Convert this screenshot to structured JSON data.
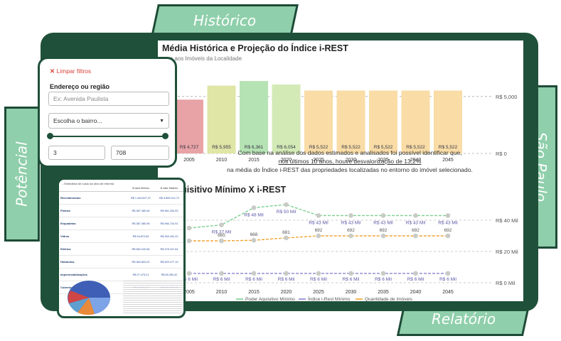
{
  "tabs": {
    "top": "Histórico",
    "right": "São Paulo",
    "left": "Potêncial",
    "bottom": "Relatório"
  },
  "chart1": {
    "title": "Média Histórica e Projeção do Índice i-REST",
    "subtitle": "...vo aos Imóveis da Localidade",
    "paragraph_line1": "Com base na análise dos dados estimados e analisados foi possível identificar que,",
    "paragraph_line2": "nos últimos 10 anos, houve desvalorização de 13,2%",
    "paragraph_line3": "na média do Índice i-REST das propriedades localizadas no entorno do imóvel selecionado.",
    "ref_labels": [
      "R$ 5,000",
      "R$ 0"
    ]
  },
  "chart2": {
    "title": "...Aquisitivo Mínimo X i-REST",
    "legend": [
      "Poder Aquisitivo Mínimo",
      "Índice i-Rest Mínimo",
      "Quantidade de Imóveis"
    ],
    "ref_labels": [
      "R$ 40 Mil",
      "R$ 20 Mil",
      "R$ 0 Mil"
    ]
  },
  "filters": {
    "clear": "Limpar filtros",
    "address_label": "Endereço ou região",
    "address_placeholder": "Ex: Avenida Paulista",
    "neighborhood": "Escolha o bairro...",
    "min": "3",
    "max": "708"
  },
  "table": {
    "title": "...Estimativa de custo da obra de reforma",
    "col1": "$ valor Mínimo",
    "col2": "$ valor Máximo",
    "rows": [
      {
        "name": "Revestimentos",
        "min": "R$ 1.443.607,37",
        "max": "R$ 3.899.912,72"
      },
      {
        "name": "Pintura",
        "min": "R$ 387.480,96",
        "max": "R$ 961.254,93"
      },
      {
        "name": "Esquadrias",
        "min": "R$ 387.480,96",
        "max": "R$ 966.724,91"
      },
      {
        "name": "Vidros",
        "min": "R$ 94.872,69",
        "max": "R$ 263.181,22"
      },
      {
        "name": "Elétrica",
        "min": "R$ 684.242,66",
        "max": "R$ 478.107,64"
      },
      {
        "name": "Hidráulica",
        "min": "R$ 369.803,02",
        "max": "R$ 629.477,19"
      },
      {
        "name": "Impermeabilizações",
        "min": "R$ 27.479,21",
        "max": "R$ 55.350,32"
      },
      {
        "name": "Cobertura",
        "min": "R$ 59.355,22",
        "max": "R$ 115.799,45"
      }
    ]
  },
  "chart_data": [
    {
      "type": "bar",
      "title": "Média Histórica e Projeção do Índice i-REST",
      "categories": [
        "2005",
        "2010",
        "2015",
        "2020",
        "2025",
        "2030",
        "2035",
        "2040",
        "2045"
      ],
      "values": [
        4727,
        5955,
        6361,
        6054,
        5522,
        5522,
        5522,
        5522,
        5522
      ],
      "value_labels": [
        "R$ 4,727",
        "R$ 5,955",
        "R$ 6,361",
        "R$ 6,054",
        "R$ 5,522",
        "R$ 5,522",
        "R$ 5,522",
        "R$ 5,522",
        "R$ 5,522"
      ],
      "colors": [
        "#e8a3a6",
        "#dfe6a6",
        "#b6e3b4",
        "#d3eab6",
        "#f9dca6",
        "#f9dca6",
        "#f9dca6",
        "#f9dca6",
        "#f9dca6"
      ]
    },
    {
      "type": "line",
      "x": [
        "2005",
        "2010",
        "2015",
        "2020",
        "2025",
        "2030",
        "2035",
        "2040",
        "2045"
      ],
      "series": [
        {
          "name": "Poder Aquisitivo Mínimo",
          "values": [
            35,
            37,
            48,
            50,
            43,
            43,
            43,
            43,
            43
          ],
          "labels": [
            "",
            "R$ 37 Mil",
            "R$ 48 Mil",
            "R$ 50 Mil",
            "R$ 43 Mil",
            "R$ 43 Mil",
            "R$ 43 Mil",
            "R$ 43 Mil",
            "R$ 43 Mil"
          ],
          "color": "#7ccf8f"
        },
        {
          "name": "Índice i-Rest Mínimo",
          "values": [
            6,
            6,
            6,
            6,
            6,
            6,
            6,
            6,
            6
          ],
          "labels": [
            "R$ 6 Mil",
            "R$ 6 Mil",
            "R$ 6 Mil",
            "R$ 6 Mil",
            "R$ 6 Mil",
            "R$ 6 Mil",
            "R$ 6 Mil",
            "R$ 6 Mil",
            "R$ 6 Mil"
          ],
          "color": "#8b86cf"
        },
        {
          "name": "Quantidade de Imóveis",
          "values": [
            665,
            665,
            668,
            681,
            692,
            692,
            692,
            692,
            692
          ],
          "labels": [
            "",
            "665",
            "668",
            "681",
            "692",
            "692",
            "692",
            "692",
            "692"
          ],
          "color": "#f2a332"
        }
      ]
    }
  ]
}
